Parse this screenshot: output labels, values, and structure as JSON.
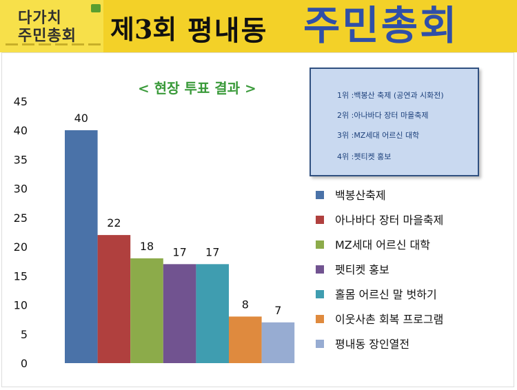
{
  "header": {
    "logo_line1": "다가치",
    "logo_line2": "주민총회",
    "title_number": "제3회",
    "title_place": "평내동",
    "title_main": "주민총회"
  },
  "ranking_box": {
    "items": [
      "1위 :백봉산 축제 (공연과 시화전)",
      "2위 :아나바다 장터 마을축제",
      "3위 :MZ세대 어르신 대학",
      "4위 :펫티켓 홍보"
    ]
  },
  "chart_data": {
    "type": "bar",
    "title": "< 현장 투표 결과 >",
    "xlabel": "",
    "ylabel": "",
    "ylim": [
      0,
      45
    ],
    "yticks": [
      0,
      5,
      10,
      15,
      20,
      25,
      30,
      35,
      40,
      45
    ],
    "grid": false,
    "legend_position": "right",
    "series": [
      {
        "name": "백봉산축제",
        "value": 40,
        "color": "#4a72a8"
      },
      {
        "name": "아나바다 장터 마을축제",
        "value": 22,
        "color": "#b0403e"
      },
      {
        "name": "MZ세대 어르신 대학",
        "value": 18,
        "color": "#8cab4a"
      },
      {
        "name": "펫티켓 홍보",
        "value": 17,
        "color": "#715390"
      },
      {
        "name": "홀몸 어르신 말 벗하기",
        "value": 17,
        "color": "#3f9db0"
      },
      {
        "name": "이웃사촌 회복 프로그램",
        "value": 8,
        "color": "#df8a3e"
      },
      {
        "name": "평내동 장인열전",
        "value": 7,
        "color": "#97acd2"
      }
    ]
  }
}
